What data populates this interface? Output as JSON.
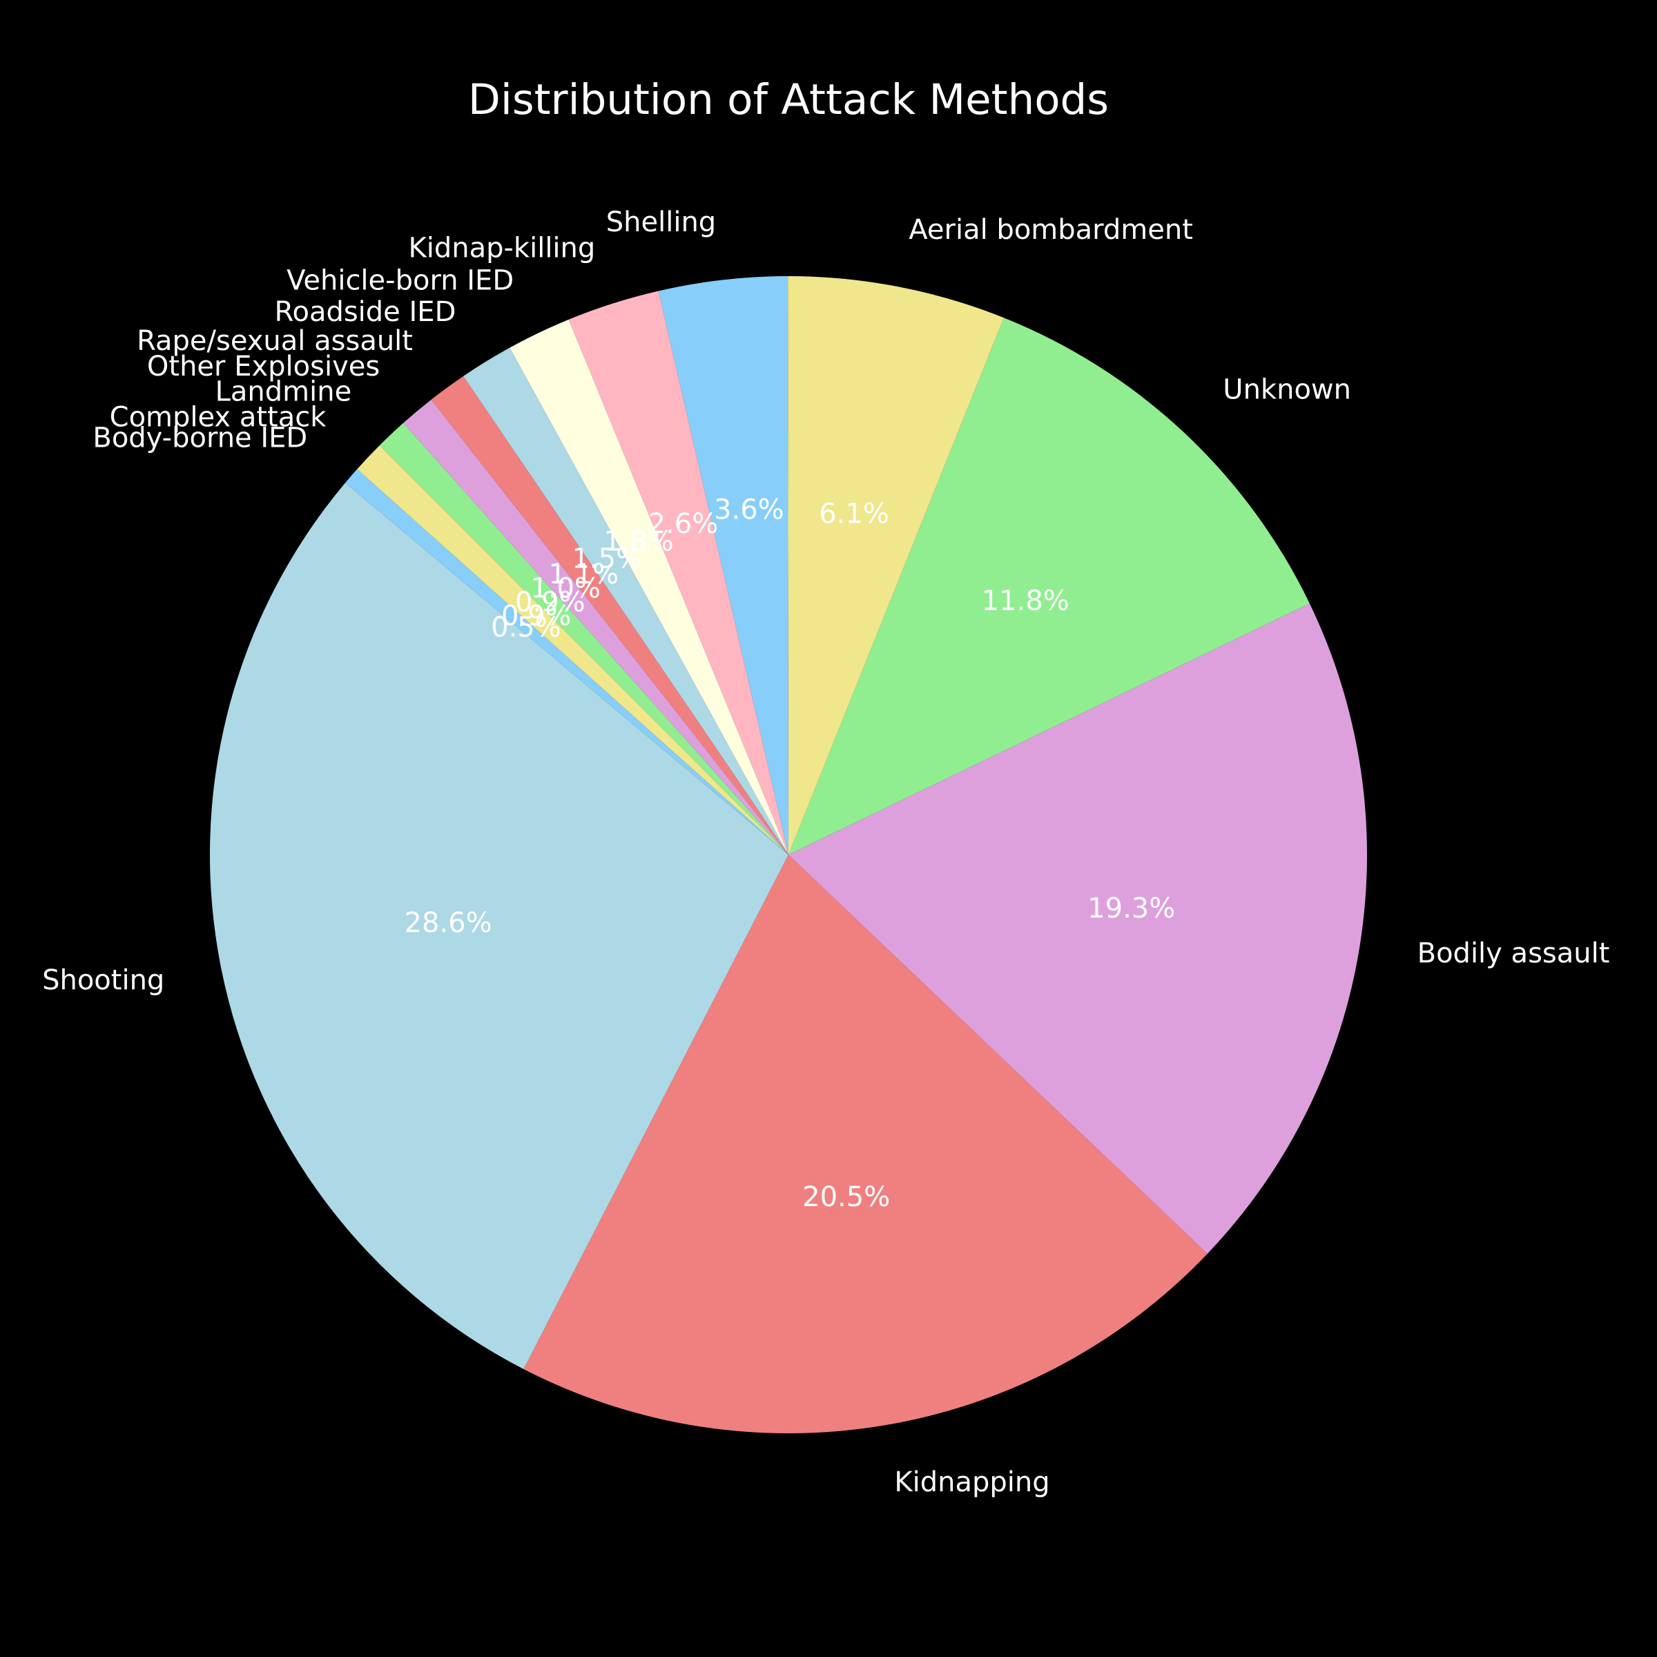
{
  "chart_data": {
    "type": "pie",
    "title": "Distribution of Attack Methods",
    "slices": [
      {
        "label": "Shooting",
        "value": 28.6,
        "pct_label": "28.6%",
        "color": "#add8e6"
      },
      {
        "label": "Kidnapping",
        "value": 20.5,
        "pct_label": "20.5%",
        "color": "#f08080"
      },
      {
        "label": "Bodily assault",
        "value": 19.3,
        "pct_label": "19.3%",
        "color": "#dda0dd"
      },
      {
        "label": "Unknown",
        "value": 11.8,
        "pct_label": "11.8%",
        "color": "#90ee90"
      },
      {
        "label": "Aerial bombardment",
        "value": 6.1,
        "pct_label": "6.1%",
        "color": "#f0e68c"
      },
      {
        "label": "Shelling",
        "value": 3.6,
        "pct_label": "3.6%",
        "color": "#87cefa"
      },
      {
        "label": "Kidnap-killing",
        "value": 2.6,
        "pct_label": "2.6%",
        "color": "#ffb6c1"
      },
      {
        "label": "Vehicle-born IED",
        "value": 1.8,
        "pct_label": "1.8%",
        "color": "#ffffe0"
      },
      {
        "label": "Roadside IED",
        "value": 1.5,
        "pct_label": "1.5%",
        "color": "#add8e6"
      },
      {
        "label": "Rape/sexual assault",
        "value": 1.1,
        "pct_label": "1.1%",
        "color": "#f08080"
      },
      {
        "label": "Other Explosives",
        "value": 1.0,
        "pct_label": "1.0%",
        "color": "#dda0dd"
      },
      {
        "label": "Landmine",
        "value": 0.9,
        "pct_label": "0.9%",
        "color": "#90ee90"
      },
      {
        "label": "Complex attack",
        "value": 0.9,
        "pct_label": "0.9%",
        "color": "#f0e68c"
      },
      {
        "label": "Body-borne IED",
        "value": 0.5,
        "pct_label": "0.5%",
        "color": "#87cefa"
      }
    ]
  }
}
